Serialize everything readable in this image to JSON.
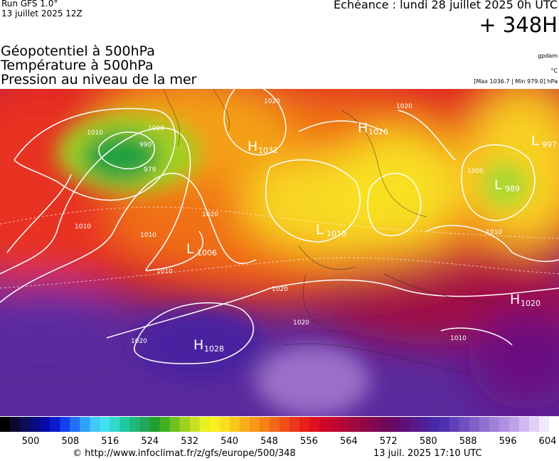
{
  "header": {
    "run": "Run GFS 1.0°",
    "date": "13 juillet 2025 12Z",
    "echeance": "Echéance : lundi 28 juillet 2025 0h UTC",
    "horizon": "+ 348H"
  },
  "fields": [
    "Géopotentiel à 500hPa",
    "Température à 500hPa",
    "Pression au niveau de la mer"
  ],
  "units": {
    "geopotential": "gpdam",
    "temperature": "°C",
    "pressure": "[Max 1036.7 | Min 979.0] hPa"
  },
  "map": {
    "pressure_centers": [
      {
        "kind": "H",
        "value": "1032"
      },
      {
        "kind": "H",
        "value": "1026"
      },
      {
        "kind": "L",
        "value": "997"
      },
      {
        "kind": "L",
        "value": "989"
      },
      {
        "kind": "L",
        "value": "1010"
      },
      {
        "kind": "L",
        "value": "1006"
      },
      {
        "kind": "H",
        "value": "1028"
      },
      {
        "kind": "H",
        "value": "1020"
      }
    ],
    "contour_labels": [
      "1020",
      "1000",
      "990",
      "979",
      "1010",
      "1020",
      "1010",
      "1010",
      "1020",
      "1020",
      "1020",
      "1010",
      "1010",
      "1000",
      "1020",
      "1010"
    ]
  },
  "colorbar": {
    "labels": [
      500,
      508,
      516,
      524,
      532,
      540,
      548,
      556,
      564,
      572,
      580,
      588,
      596,
      604
    ],
    "colors": [
      "#000000",
      "#0a0a30",
      "#0c0c58",
      "#0a0a80",
      "#0808a8",
      "#0a1ad0",
      "#1040f0",
      "#2070f8",
      "#30a0f8",
      "#40c8f8",
      "#40e0f0",
      "#30d8c8",
      "#20c8a0",
      "#20b878",
      "#20a858",
      "#20a030",
      "#40b020",
      "#70c020",
      "#a0d020",
      "#c8e020",
      "#e8f020",
      "#f8f020",
      "#f8e020",
      "#f8c818",
      "#f8b018",
      "#f89818",
      "#f88018",
      "#f06818",
      "#f05018",
      "#e83818",
      "#e82018",
      "#e01020",
      "#d00828",
      "#c00830",
      "#b00838",
      "#a00840",
      "#900848",
      "#800850",
      "#700858",
      "#680868",
      "#601078",
      "#581888",
      "#502098",
      "#4828a8",
      "#5030b0",
      "#6040b8",
      "#7050c0",
      "#8060c8",
      "#9070d0",
      "#a080d8",
      "#b090e0",
      "#c0a0e8",
      "#d0b8f0",
      "#e0d0f8",
      "#f0e8fc",
      "#ffffff"
    ]
  },
  "footer": {
    "url": "© http://www.infoclimat.fr/z/gfs/europe/500/348",
    "timestamp": "13 juil. 2025 17:10 UTC"
  }
}
